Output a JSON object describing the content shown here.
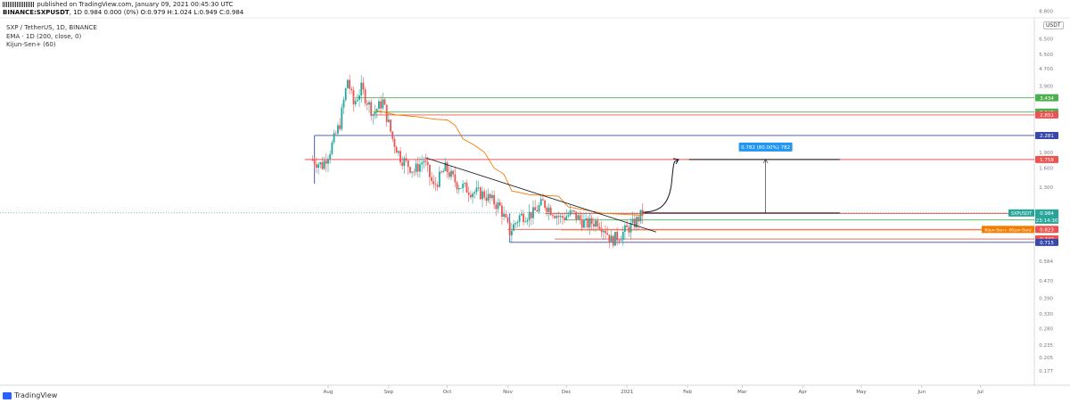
{
  "header": {
    "line1": "published on TradingView.com, January 09, 2021 00:45:30 UTC",
    "symbol": "BINANCE:SXPUSDT",
    "line2": ", 1D  0.984  0.000 (0%)  O:0.979 H:1.024 L:0.949 C:0.984"
  },
  "legend": {
    "title": "SXP / TetherUS, 1D, BINANCE",
    "ema": "EMA · 1D (200, close, 0)",
    "kijun": "Kijun-Sen+ (60)"
  },
  "currency_label": "USDT",
  "footer": {
    "brand": "TradingView"
  },
  "colors": {
    "up": "#26a69a",
    "down": "#ef5350",
    "kijun": "#f57c00",
    "green_line": "#4caf50",
    "red_line": "#ef5350",
    "blue_line": "#3949ab",
    "trendline": "#131722",
    "teal_price": "#26a69a",
    "fib_label": "#2196f3"
  },
  "chart_data": {
    "type": "candlestick",
    "scale": "log",
    "y_range": [
      0.165,
      8.8
    ],
    "price_ticks": [
      "8.800",
      "6.500",
      "5.500",
      "4.700",
      "3.900",
      "2.300",
      "1.900",
      "1.600",
      "1.300",
      "0.584",
      "0.470",
      "0.390",
      "0.330",
      "0.280",
      "0.235",
      "0.205",
      "0.177"
    ],
    "x_labels": [
      "Aug",
      "Sep",
      "Oct",
      "Nov",
      "Dec",
      "2021",
      "Feb",
      "Mar",
      "Apr",
      "May",
      "Jun",
      "Jul"
    ],
    "ohlc_start": "2020-07-24",
    "ohlc_end": "2021-01-09",
    "candle_anchors": [
      {
        "date": "2020-07-24",
        "close": 1.75
      },
      {
        "date": "2020-07-29",
        "close": 1.65
      },
      {
        "date": "2020-08-02",
        "close": 1.95
      },
      {
        "date": "2020-08-07",
        "close": 2.6
      },
      {
        "date": "2020-08-11",
        "close": 4.2
      },
      {
        "date": "2020-08-14",
        "close": 3.2
      },
      {
        "date": "2020-08-18",
        "close": 3.8
      },
      {
        "date": "2020-08-24",
        "close": 2.9
      },
      {
        "date": "2020-08-29",
        "close": 3.3
      },
      {
        "date": "2020-09-03",
        "close": 2.2
      },
      {
        "date": "2020-09-07",
        "close": 1.8
      },
      {
        "date": "2020-09-14",
        "close": 1.55
      },
      {
        "date": "2020-09-19",
        "close": 1.75
      },
      {
        "date": "2020-09-24",
        "close": 1.3
      },
      {
        "date": "2020-09-30",
        "close": 1.6
      },
      {
        "date": "2020-10-06",
        "close": 1.35
      },
      {
        "date": "2020-10-13",
        "close": 1.25
      },
      {
        "date": "2020-10-20",
        "close": 1.2
      },
      {
        "date": "2020-10-28",
        "close": 1.05
      },
      {
        "date": "2020-11-02",
        "close": 0.8
      },
      {
        "date": "2020-11-07",
        "close": 0.95
      },
      {
        "date": "2020-11-14",
        "close": 0.98
      },
      {
        "date": "2020-11-19",
        "close": 1.1
      },
      {
        "date": "2020-11-23",
        "close": 1.02
      },
      {
        "date": "2020-11-28",
        "close": 0.93
      },
      {
        "date": "2020-12-04",
        "close": 0.98
      },
      {
        "date": "2020-12-11",
        "close": 0.87
      },
      {
        "date": "2020-12-17",
        "close": 0.9
      },
      {
        "date": "2020-12-21",
        "close": 0.82
      },
      {
        "date": "2020-12-24",
        "close": 0.73
      },
      {
        "date": "2020-12-29",
        "close": 0.78
      },
      {
        "date": "2021-01-02",
        "close": 0.84
      },
      {
        "date": "2021-01-05",
        "close": 0.88
      },
      {
        "date": "2021-01-09",
        "close": 0.984
      }
    ],
    "ema200": [
      {
        "date": "2020-08-25",
        "value": 3.0
      },
      {
        "date": "2020-09-05",
        "value": 2.85
      },
      {
        "date": "2020-09-15",
        "value": 2.8
      },
      {
        "date": "2020-09-25",
        "value": 2.72
      },
      {
        "date": "2020-10-01",
        "value": 2.7
      },
      {
        "date": "2020-10-05",
        "value": 2.55
      },
      {
        "date": "2020-10-09",
        "value": 2.2
      },
      {
        "date": "2020-10-15",
        "value": 2.05
      },
      {
        "date": "2020-10-20",
        "value": 1.9
      },
      {
        "date": "2020-10-25",
        "value": 1.6
      },
      {
        "date": "2020-10-30",
        "value": 1.5
      },
      {
        "date": "2020-11-03",
        "value": 1.25
      },
      {
        "date": "2020-11-12",
        "value": 1.2
      },
      {
        "date": "2020-11-27",
        "value": 1.18
      },
      {
        "date": "2020-12-02",
        "value": 1.05
      },
      {
        "date": "2020-12-20",
        "value": 0.98
      },
      {
        "date": "2021-01-09",
        "value": 0.96
      }
    ],
    "kijun": [
      {
        "date": "2020-11-28",
        "value": 0.82
      },
      {
        "date": "2021-01-09",
        "value": 0.82
      }
    ],
    "horizontal_levels": [
      {
        "value": 3.434,
        "label": "3.434",
        "color": "#4caf50",
        "from": "2020-08-15"
      },
      {
        "value": 2.94,
        "label": "2.940",
        "color": "#4caf50",
        "from": "2020-08-24"
      },
      {
        "value": 2.851,
        "label": "2.851",
        "color": "#ef5350",
        "from": "2020-08-24"
      },
      {
        "value": 2.281,
        "label": "2.281",
        "color": "#3949ab",
        "from": "2020-07-25",
        "box_to": "2020-11-02",
        "box_low": 0.715
      },
      {
        "value": 1.758,
        "label": "1.758",
        "color": "#ef5350",
        "from": "2020-07-20"
      },
      {
        "value": 0.979,
        "label": "0.979",
        "color": "#ef5350",
        "from": "2020-11-20"
      },
      {
        "value": 0.912,
        "label": "0.912",
        "color": "#4caf50",
        "from": "2020-11-30"
      },
      {
        "value": 0.823,
        "label": "0.823",
        "color": "#ef5350",
        "from": "2020-11-01"
      },
      {
        "value": 0.742,
        "label": "0.742",
        "color": "#ef5350",
        "from": "2020-11-25"
      },
      {
        "value": 0.715,
        "label": "0.715",
        "color": "#3949ab",
        "from": "2020-11-02"
      }
    ],
    "trendline": {
      "start": {
        "date": "2020-09-20",
        "value": 1.79
      },
      "end": {
        "date": "2021-01-16",
        "value": 0.8
      }
    },
    "current_price": {
      "value": 0.984,
      "label": "SXPUSDT",
      "price": "0.984",
      "countdown": "23:14:30"
    },
    "kijun_label": {
      "value": 0.823,
      "text": "Kijun-Sen+ (Kijun-Sen)"
    },
    "fib_target": {
      "label": "0.782 (80.00%) 782",
      "from_value": 0.984,
      "to_value": 1.758,
      "date": "2021-03-13",
      "x_from": "2021-01-10",
      "x_to": "2021-04-20"
    },
    "projection_path": [
      {
        "date": "2021-01-09",
        "value": 0.99
      },
      {
        "date": "2021-01-13",
        "value": 1.0
      },
      {
        "date": "2021-01-20",
        "value": 1.1
      },
      {
        "date": "2021-01-24",
        "value": 1.4
      },
      {
        "date": "2021-01-27",
        "value": 1.758
      }
    ]
  }
}
